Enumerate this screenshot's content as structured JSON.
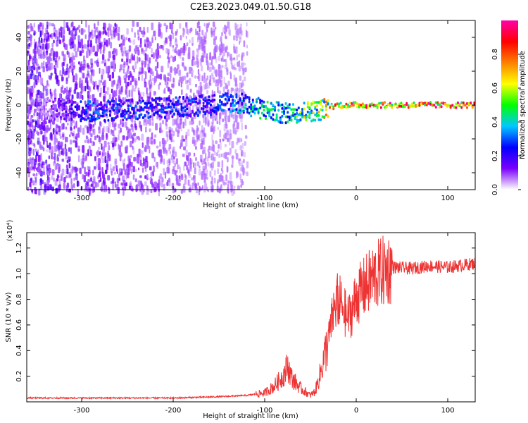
{
  "title": "C2E3.2023.049.01.50.G18",
  "chart_data": [
    {
      "type": "heatmap",
      "xlabel": "Height of straight line (km)",
      "ylabel": "Frequency (Hz)",
      "xlim": [
        -360,
        130
      ],
      "ylim": [
        -50,
        50
      ],
      "x_ticks": [
        -300,
        -200,
        -100,
        0,
        100
      ],
      "y_ticks": [
        -40,
        -20,
        0,
        20,
        40
      ],
      "grid": false,
      "colorbar": {
        "label": "Normalized spectral amplitude",
        "range": [
          0,
          1
        ],
        "ticks": [
          "0.0",
          "0.2",
          "0.4",
          "0.6",
          "0.8"
        ],
        "colormap": [
          "#ffffff",
          "#7a00ff",
          "#0000ff",
          "#00c8ff",
          "#00ff00",
          "#ffff00",
          "#ff8000",
          "#ff0000",
          "#ff00aa"
        ]
      },
      "ridge": [
        {
          "x": -360,
          "y": -1,
          "amp": 0.0
        },
        {
          "x": -290,
          "y": -4,
          "amp": 0.3
        },
        {
          "x": -160,
          "y": 0,
          "amp": 0.25
        },
        {
          "x": -140,
          "y": 2,
          "amp": 0.3
        },
        {
          "x": -120,
          "y": 0,
          "amp": 0.4
        },
        {
          "x": -100,
          "y": -3,
          "amp": 0.45
        },
        {
          "x": -80,
          "y": -5,
          "amp": 0.4
        },
        {
          "x": -60,
          "y": -4,
          "amp": 0.55
        },
        {
          "x": -40,
          "y": -3,
          "amp": 0.65
        },
        {
          "x": -30,
          "y": -1,
          "amp": 0.7
        },
        {
          "x": -20,
          "y": 0,
          "amp": 0.8
        },
        {
          "x": 0,
          "y": 0,
          "amp": 0.9
        },
        {
          "x": 50,
          "y": 0,
          "amp": 0.9
        },
        {
          "x": 100,
          "y": 0,
          "amp": 0.9
        },
        {
          "x": 130,
          "y": 0,
          "amp": 0.9
        }
      ]
    },
    {
      "type": "line",
      "xlabel": "Height of straight line (km)",
      "ylabel": "SNR (10 * v/v)",
      "y_multiplier": "(x10⁴)",
      "xlim": [
        -360,
        130
      ],
      "ylim": [
        0,
        1.32
      ],
      "x_ticks": [
        -300,
        -200,
        -100,
        0,
        100
      ],
      "y_ticks": [
        0.2,
        0.4,
        0.6,
        0.8,
        1.0,
        1.2
      ],
      "grid": false,
      "color": "#ee3333",
      "series": [
        {
          "x": [
            -360,
            -300,
            -250,
            -200,
            -150,
            -120,
            -100,
            -90,
            -80,
            -75,
            -70,
            -60,
            -50,
            -45,
            -40,
            -35,
            -30,
            -25,
            -20,
            -15,
            -10,
            -5,
            0,
            10,
            20,
            30,
            40,
            60,
            80,
            100,
            120,
            130
          ],
          "values": [
            0.03,
            0.03,
            0.03,
            0.03,
            0.04,
            0.05,
            0.07,
            0.12,
            0.2,
            0.28,
            0.18,
            0.1,
            0.05,
            0.08,
            0.2,
            0.35,
            0.5,
            0.7,
            0.8,
            0.75,
            0.65,
            0.7,
            0.82,
            0.9,
            0.98,
            1.02,
            1.05,
            1.04,
            1.06,
            1.05,
            1.07,
            1.08
          ]
        }
      ]
    }
  ]
}
